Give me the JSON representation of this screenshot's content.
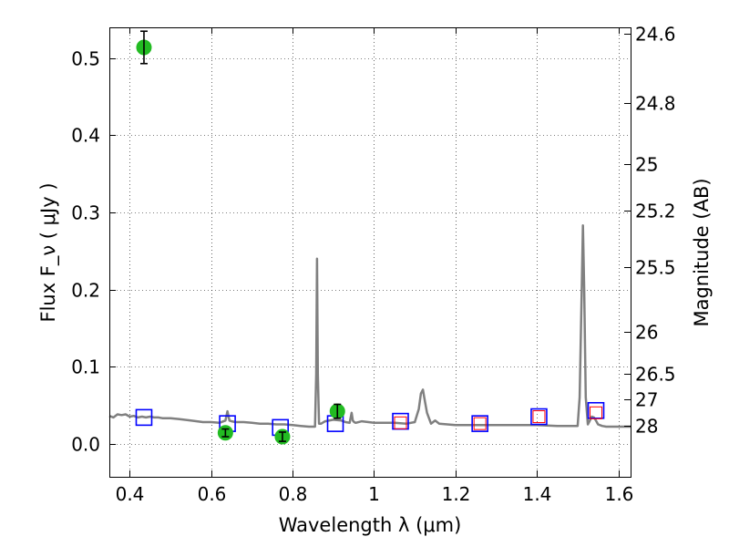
{
  "chart_data": {
    "type": "scatter",
    "title": "",
    "xlabel": "Wavelength  λ (μm)",
    "ylabel": "Flux  F_ν  ( μJy )",
    "y2label": "Magnitude (AB)",
    "xlim": [
      0.35,
      1.63
    ],
    "ylim": [
      -0.043,
      0.54
    ],
    "grid": true,
    "legend": "none",
    "x_ticks": [
      0.4,
      0.6,
      0.8,
      1.0,
      1.2,
      1.4,
      1.6
    ],
    "x_tick_labels": [
      "0.4",
      "0.6",
      "0.8",
      "1",
      "1.2",
      "1.4",
      "1.6"
    ],
    "y_ticks": [
      0.0,
      0.1,
      0.2,
      0.3,
      0.4,
      0.5
    ],
    "y_tick_labels": [
      "0.0",
      "0.1",
      "0.2",
      "0.3",
      "0.4",
      "0.5"
    ],
    "y2_ticks": [
      {
        "label": "24.6",
        "flux": 0.5313
      },
      {
        "label": "24.8",
        "flux": 0.4419
      },
      {
        "label": "25",
        "flux": 0.3631
      },
      {
        "label": "25.2",
        "flux": 0.302
      },
      {
        "label": "25.5",
        "flux": 0.2291
      },
      {
        "label": "26",
        "flux": 0.1445
      },
      {
        "label": "26.5",
        "flux": 0.0912
      },
      {
        "label": "27",
        "flux": 0.0575
      },
      {
        "label": "28",
        "flux": 0.0229
      }
    ],
    "series": [
      {
        "kind": "line",
        "color": "#808080",
        "x": [
          0.35,
          0.36,
          0.37,
          0.38,
          0.39,
          0.4,
          0.41,
          0.42,
          0.43,
          0.44,
          0.45,
          0.46,
          0.47,
          0.48,
          0.5,
          0.52,
          0.55,
          0.58,
          0.6,
          0.62,
          0.635,
          0.64,
          0.645,
          0.65,
          0.66,
          0.68,
          0.7,
          0.72,
          0.74,
          0.76,
          0.78,
          0.8,
          0.82,
          0.84,
          0.855,
          0.858,
          0.86,
          0.862,
          0.865,
          0.87,
          0.88,
          0.9,
          0.92,
          0.93,
          0.94,
          0.945,
          0.948,
          0.951,
          0.955,
          0.97,
          1.0,
          1.02,
          1.05,
          1.08,
          1.1,
          1.11,
          1.115,
          1.12,
          1.125,
          1.13,
          1.14,
          1.15,
          1.16,
          1.18,
          1.2,
          1.25,
          1.3,
          1.35,
          1.4,
          1.45,
          1.48,
          1.5,
          1.505,
          1.51,
          1.513,
          1.516,
          1.52,
          1.525,
          1.53,
          1.535,
          1.54,
          1.545,
          1.55,
          1.56,
          1.57,
          1.58,
          1.6,
          1.63
        ],
        "y": [
          0.036,
          0.034,
          0.038,
          0.037,
          0.038,
          0.035,
          0.036,
          0.034,
          0.035,
          0.034,
          0.035,
          0.034,
          0.034,
          0.033,
          0.033,
          0.032,
          0.03,
          0.028,
          0.028,
          0.027,
          0.03,
          0.042,
          0.03,
          0.029,
          0.028,
          0.028,
          0.027,
          0.026,
          0.026,
          0.025,
          0.025,
          0.024,
          0.023,
          0.022,
          0.022,
          0.09,
          0.24,
          0.09,
          0.026,
          0.026,
          0.029,
          0.031,
          0.03,
          0.028,
          0.027,
          0.04,
          0.03,
          0.028,
          0.027,
          0.029,
          0.027,
          0.027,
          0.027,
          0.026,
          0.028,
          0.045,
          0.065,
          0.07,
          0.055,
          0.04,
          0.026,
          0.03,
          0.026,
          0.025,
          0.024,
          0.024,
          0.024,
          0.024,
          0.024,
          0.023,
          0.023,
          0.023,
          0.06,
          0.2,
          0.283,
          0.2,
          0.06,
          0.025,
          0.03,
          0.035,
          0.034,
          0.03,
          0.025,
          0.023,
          0.022,
          0.022,
          0.022,
          0.022
        ]
      },
      {
        "kind": "open-square",
        "color": "#0000ff",
        "x": [
          0.435,
          0.64,
          0.77,
          0.905,
          1.065,
          1.26,
          1.405,
          1.545
        ],
        "y": [
          0.034,
          0.026,
          0.021,
          0.026,
          0.029,
          0.026,
          0.035,
          0.043
        ]
      },
      {
        "kind": "open-square",
        "color": "#ff0000",
        "x": [
          1.065,
          1.26,
          1.405,
          1.545
        ],
        "y": [
          0.027,
          0.026,
          0.035,
          0.04
        ]
      },
      {
        "kind": "point-errorbar",
        "color": "#22bb22",
        "x": [
          0.435,
          0.635,
          0.775,
          0.91
        ],
        "y": [
          0.514,
          0.014,
          0.009,
          0.042
        ],
        "yerr": [
          0.021,
          0.005,
          0.006,
          0.009
        ]
      }
    ]
  }
}
